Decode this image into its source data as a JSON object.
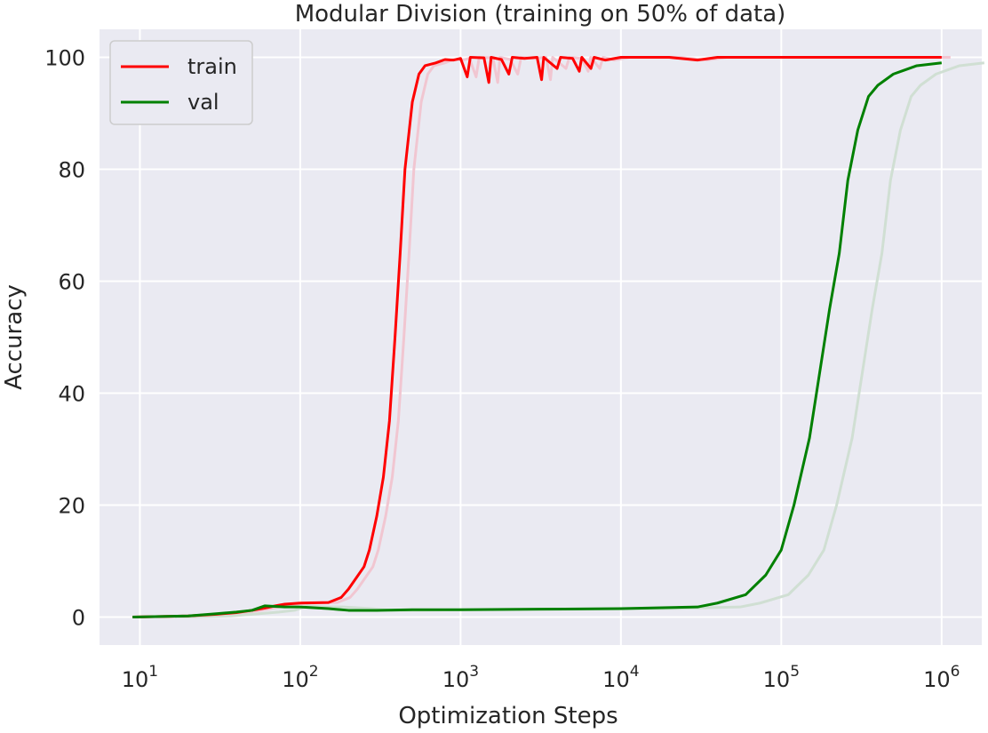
{
  "chart_data": {
    "type": "line",
    "title": "Modular Division (training on 50% of data)",
    "xlabel": "Optimization Steps",
    "ylabel": "Accuracy",
    "xscale": "log",
    "xlim": [
      5.6,
      1780000
    ],
    "ylim": [
      -5,
      105
    ],
    "grid": true,
    "legend_position": "top-left",
    "x_ticks": [
      {
        "value": 10,
        "base": "10",
        "exp": "1"
      },
      {
        "value": 100,
        "base": "10",
        "exp": "2"
      },
      {
        "value": 1000,
        "base": "10",
        "exp": "3"
      },
      {
        "value": 10000,
        "base": "10",
        "exp": "4"
      },
      {
        "value": 100000,
        "base": "10",
        "exp": "5"
      },
      {
        "value": 1000000,
        "base": "10",
        "exp": "6"
      }
    ],
    "y_ticks": [
      0,
      20,
      40,
      60,
      80,
      100
    ],
    "series": [
      {
        "name": "train",
        "color": "#ff0000",
        "shadow_color": "#f1c6d1",
        "points": [
          [
            9,
            0
          ],
          [
            20,
            0.2
          ],
          [
            30,
            0.5
          ],
          [
            40,
            0.8
          ],
          [
            50,
            1.2
          ],
          [
            60,
            1.6
          ],
          [
            70,
            2
          ],
          [
            80,
            2.3
          ],
          [
            100,
            2.5
          ],
          [
            150,
            2.6
          ],
          [
            180,
            3.5
          ],
          [
            200,
            5
          ],
          [
            230,
            7.5
          ],
          [
            250,
            9
          ],
          [
            270,
            12
          ],
          [
            300,
            18
          ],
          [
            330,
            25
          ],
          [
            360,
            35
          ],
          [
            390,
            50
          ],
          [
            420,
            65
          ],
          [
            450,
            80
          ],
          [
            500,
            92
          ],
          [
            550,
            97
          ],
          [
            600,
            98.5
          ],
          [
            700,
            99
          ],
          [
            800,
            99.6
          ],
          [
            900,
            99.5
          ],
          [
            1000,
            99.8
          ],
          [
            1100,
            96.5
          ],
          [
            1150,
            100
          ],
          [
            1400,
            99.9
          ],
          [
            1500,
            95.5
          ],
          [
            1550,
            100
          ],
          [
            1800,
            99.6
          ],
          [
            2000,
            97
          ],
          [
            2100,
            100
          ],
          [
            2500,
            99.8
          ],
          [
            3000,
            100
          ],
          [
            3200,
            96
          ],
          [
            3300,
            100
          ],
          [
            4000,
            98
          ],
          [
            4200,
            100
          ],
          [
            5000,
            99.8
          ],
          [
            5500,
            97.5
          ],
          [
            5700,
            100
          ],
          [
            6500,
            98
          ],
          [
            6800,
            100
          ],
          [
            8000,
            99.5
          ],
          [
            10000,
            100
          ],
          [
            20000,
            100
          ],
          [
            30000,
            99.5
          ],
          [
            40000,
            100
          ],
          [
            100000,
            100
          ],
          [
            1000000,
            100
          ]
        ]
      },
      {
        "name": "val",
        "color": "#008000",
        "shadow_color": "#d0dfd3",
        "points": [
          [
            9,
            0
          ],
          [
            20,
            0.2
          ],
          [
            30,
            0.6
          ],
          [
            40,
            0.9
          ],
          [
            50,
            1.2
          ],
          [
            60,
            2
          ],
          [
            80,
            1.8
          ],
          [
            100,
            1.8
          ],
          [
            150,
            1.5
          ],
          [
            200,
            1.2
          ],
          [
            300,
            1.2
          ],
          [
            500,
            1.3
          ],
          [
            1000,
            1.3
          ],
          [
            3000,
            1.4
          ],
          [
            10000,
            1.5
          ],
          [
            30000,
            1.8
          ],
          [
            40000,
            2.5
          ],
          [
            60000,
            4
          ],
          [
            80000,
            7.5
          ],
          [
            100000,
            12
          ],
          [
            120000,
            20
          ],
          [
            150000,
            32
          ],
          [
            170000,
            42
          ],
          [
            200000,
            55
          ],
          [
            230000,
            65
          ],
          [
            260000,
            78
          ],
          [
            300000,
            87
          ],
          [
            350000,
            93
          ],
          [
            400000,
            95
          ],
          [
            500000,
            97
          ],
          [
            700000,
            98.5
          ],
          [
            1000000,
            99
          ]
        ]
      }
    ]
  }
}
